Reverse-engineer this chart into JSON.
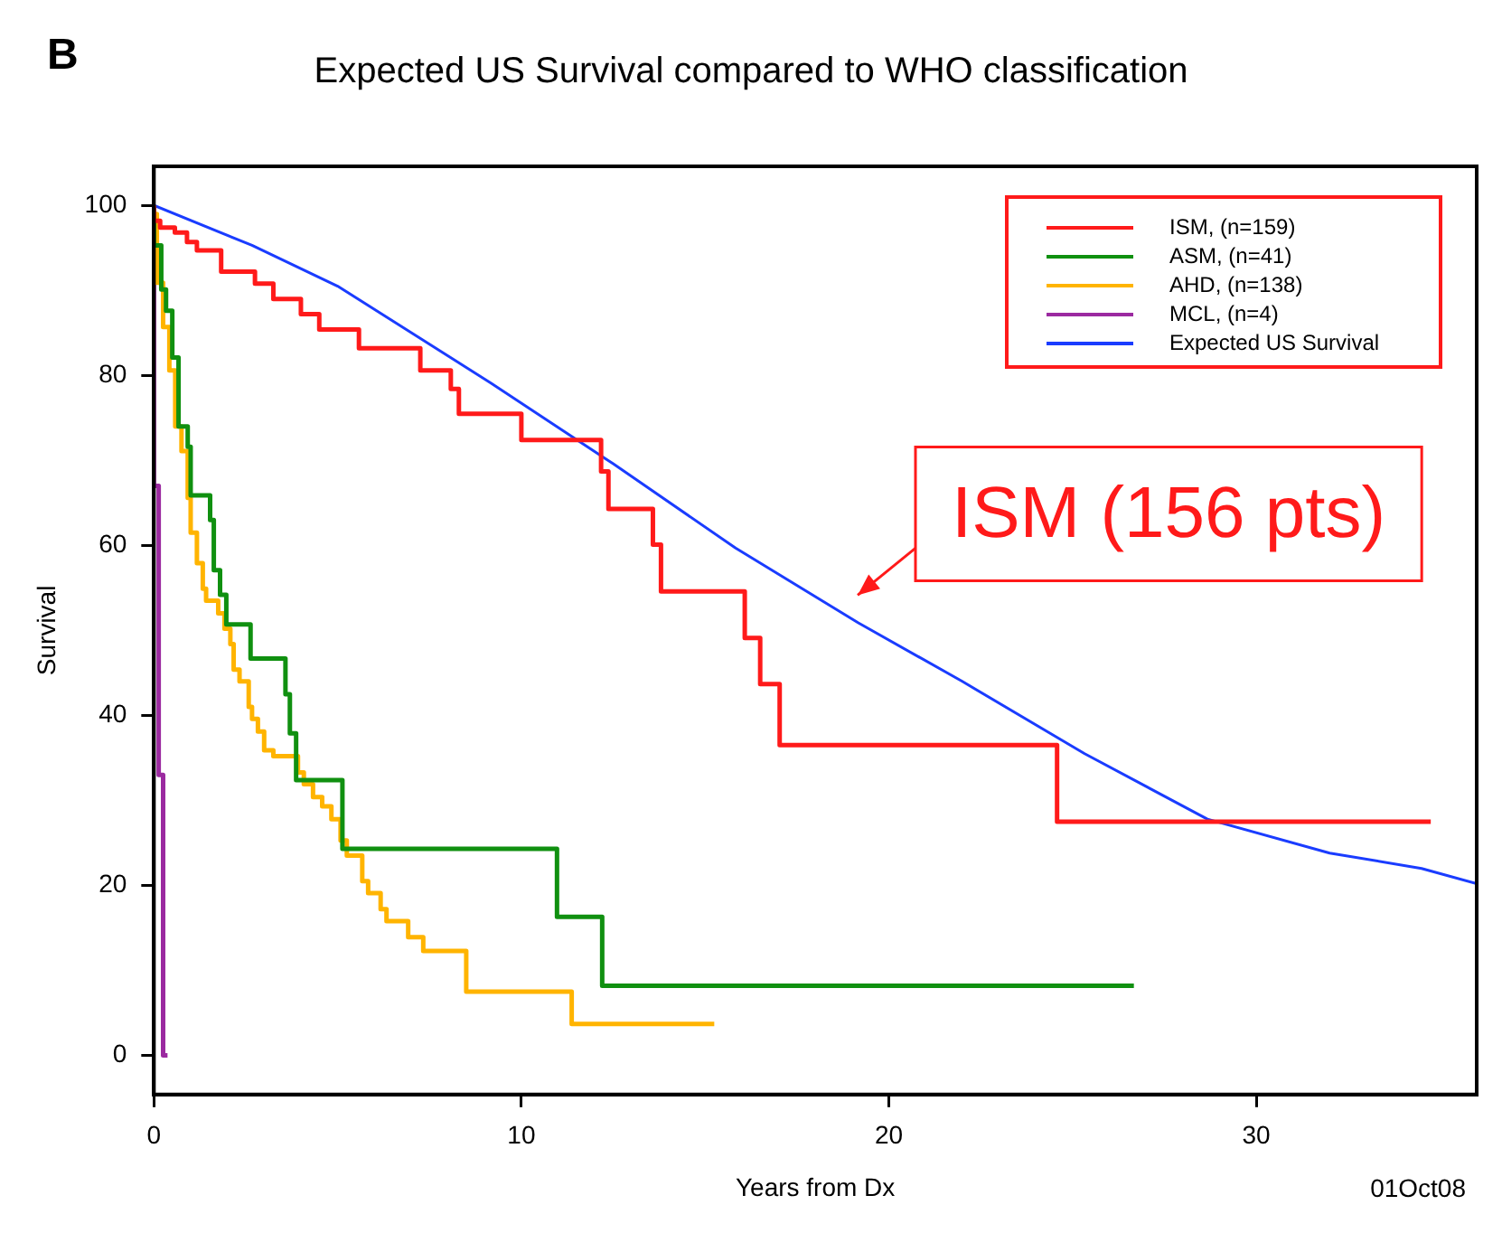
{
  "chart_data": {
    "type": "step",
    "title": "Expected US Survival compared to WHO classification",
    "xlabel": "Years from Dx",
    "ylabel": "Survival",
    "xlim": [
      0,
      36
    ],
    "ylim": [
      -4.6,
      104.6
    ],
    "xticks": [
      0,
      10,
      20,
      30
    ],
    "yticks": [
      0,
      20,
      40,
      60,
      80,
      100
    ],
    "legend": "top right",
    "annotations": [
      "B",
      "01Oct08",
      "ISM (156 pts)"
    ],
    "series": [
      {
        "name": "ISM, (n=159)",
        "color": "#ff1a1a",
        "x": [
          0,
          0.17,
          0.57,
          0.9,
          1.17,
          1.83,
          2.75,
          3.25,
          4.0,
          4.5,
          5.58,
          7.25,
          8.08,
          8.3,
          10.0,
          12.17,
          12.37,
          13.58,
          13.8,
          16.08,
          16.5,
          17.03,
          24.58,
          26.47,
          34.75
        ],
        "values": [
          100,
          98.2,
          97.4,
          96.8,
          95.7,
          94.7,
          92.2,
          90.8,
          89,
          87.2,
          85.4,
          83.2,
          80.6,
          78.4,
          75.5,
          72.4,
          68.7,
          64.3,
          60.1,
          54.6,
          49.1,
          43.7,
          36.5,
          27.5,
          27.5
        ]
      },
      {
        "name": "ASM, (n=41)",
        "color": "#109010",
        "x": [
          0,
          0.2,
          0.33,
          0.5,
          0.67,
          0.92,
          1.0,
          1.53,
          1.63,
          1.8,
          1.97,
          2.63,
          3.58,
          3.7,
          3.87,
          5.13,
          10.97,
          12.2,
          17.62,
          26.67
        ],
        "values": [
          100,
          95.3,
          90.1,
          87.6,
          82.1,
          74.0,
          71.6,
          65.9,
          63.0,
          57.1,
          54.2,
          50.7,
          46.7,
          42.5,
          37.9,
          32.4,
          24.3,
          16.3,
          8.2,
          8.2
        ]
      },
      {
        "name": "AHD, (n=138)",
        "color": "#ffb400",
        "x": [
          0,
          0.08,
          0.25,
          0.42,
          0.58,
          0.75,
          0.92,
          1.0,
          1.17,
          1.33,
          1.42,
          1.75,
          1.92,
          2.08,
          2.17,
          2.33,
          2.58,
          2.67,
          2.83,
          3.0,
          3.25,
          3.92,
          4.08,
          4.33,
          4.58,
          4.83,
          5.08,
          5.25,
          5.67,
          5.83,
          6.17,
          6.33,
          6.92,
          7.33,
          8.5,
          11.37,
          13.08,
          15.25
        ],
        "values": [
          100,
          99,
          90.9,
          85.7,
          80.6,
          74.0,
          71.1,
          65.6,
          61.5,
          57.9,
          54.9,
          53.5,
          52.0,
          50.2,
          48.4,
          45.4,
          44.0,
          41.0,
          39.6,
          38.1,
          35.9,
          35.2,
          33.3,
          31.9,
          30.4,
          29.3,
          27.8,
          25.3,
          23.5,
          20.5,
          19.1,
          17.2,
          15.8,
          13.9,
          12.3,
          7.5,
          3.7,
          3.7
        ]
      },
      {
        "name": "MCL, (n=4)",
        "color": "#9b2aa0",
        "x": [
          0,
          0.13,
          0.25,
          0.37
        ],
        "values": [
          100,
          67,
          33,
          0
        ]
      },
      {
        "name": "Expected US Survival",
        "type": "line",
        "color": "#1a3cff",
        "x": [
          0,
          2.67,
          5,
          9.17,
          12.5,
          15.83,
          19.17,
          22,
          25.33,
          28.67,
          32,
          34.5,
          36
        ],
        "values": [
          100,
          95.3,
          90.5,
          79.1,
          69.6,
          59.7,
          50.9,
          44,
          35.5,
          27.8,
          23.8,
          22,
          20.2
        ]
      }
    ]
  }
}
